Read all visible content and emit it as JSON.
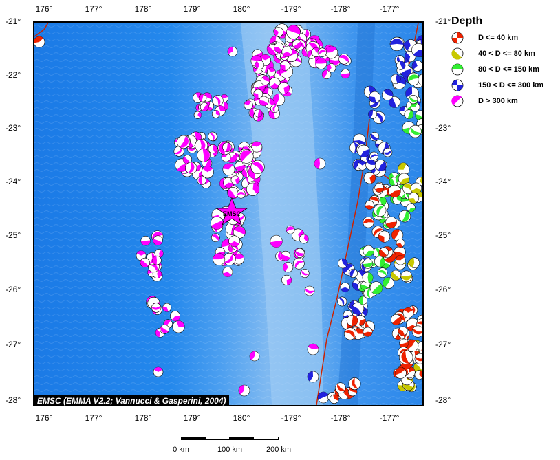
{
  "map": {
    "lon_labels": [
      "176°",
      "177°",
      "178°",
      "179°",
      "180°",
      "-179°",
      "-178°",
      "-177°"
    ],
    "lat_labels": [
      "-21°",
      "-22°",
      "-23°",
      "-24°",
      "-25°",
      "-26°",
      "-27°",
      "-28°"
    ],
    "credit": "EMSC (EMMA V2.2; Vannucci & Gasperini, 2004)",
    "epicenter_label": "EMSC",
    "colors": {
      "ocean_deep": "#1e7fe8",
      "ocean_mid": "#4a9ff0",
      "ocean_shallow": "#9ecdf3",
      "plate_boundary": "#cc2200",
      "epicenter": "#ff00ff"
    }
  },
  "legend": {
    "title": "Depth",
    "items": [
      {
        "label": "D <= 40 km",
        "color": "#ee2200"
      },
      {
        "label": "40 < D <= 80 km",
        "color": "#c8c800"
      },
      {
        "label": "80 < D <= 150 km",
        "color": "#33ee33"
      },
      {
        "label": "150 < D <= 300 km",
        "color": "#2222dd"
      },
      {
        "label": "D > 300 km",
        "color": "#ff00ff"
      }
    ]
  },
  "scale": {
    "labels": [
      "0 km",
      "100 km",
      "200 km"
    ]
  }
}
